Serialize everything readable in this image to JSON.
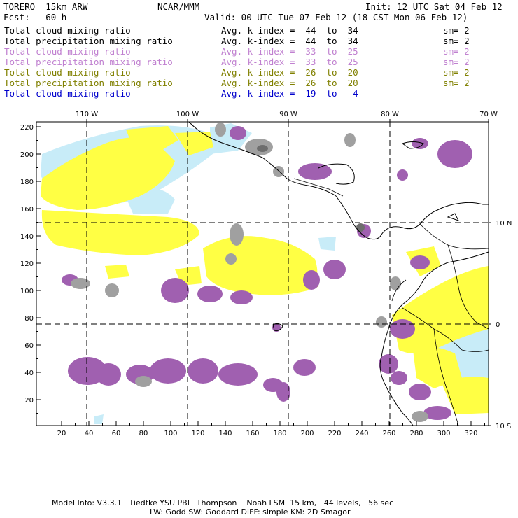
{
  "header": {
    "model_name": "TORERO  15km ARW",
    "org": "NCAR/MMM",
    "init": "Init: 12 UTC Sat 04 Feb 12",
    "fcst": "Fcst:   60 h",
    "valid": "Valid: 00 UTC Tue 07 Feb 12 (18 CST Mon 06 Feb 12)"
  },
  "legend": [
    {
      "field": "Total cloud mixing ratio",
      "kindex": "Avg. k-index =  44  to  34",
      "sm": "sm= 2",
      "color": "#000000"
    },
    {
      "field": "Total precipitation mixing ratio",
      "kindex": "Avg. k-index =  44  to  34",
      "sm": "sm= 2",
      "color": "#000000"
    },
    {
      "field": "Total cloud mixing ratio",
      "kindex": "Avg. k-index =  33  to  25",
      "sm": "sm= 2",
      "color": "#c080d0"
    },
    {
      "field": "Total precipitation mixing ratio",
      "kindex": "Avg. k-index =  33  to  25",
      "sm": "sm= 2",
      "color": "#c080d0"
    },
    {
      "field": "Total cloud mixing ratio",
      "kindex": "Avg. k-index =  26  to  20",
      "sm": "sm= 2",
      "color": "#808000"
    },
    {
      "field": "Total precipitation mixing ratio",
      "kindex": "Avg. k-index =  26  to  20",
      "sm": "sm= 2",
      "color": "#808000"
    },
    {
      "field": "Total cloud mixing ratio",
      "kindex": "Avg. k-index =  19  to   4",
      "sm": "",
      "color": "#0000cc"
    }
  ],
  "colors": {
    "gray": "#a0a0a0",
    "dark_gray": "#6e6e6e",
    "purple": "#a060b0",
    "yellow": "#ffff44",
    "light_blue": "#c8ecf8",
    "frame": "#000000"
  },
  "map": {
    "top_lon_labels": [
      "110 W",
      "100 W",
      "90 W",
      "80 W",
      "70 W"
    ],
    "right_lat_labels": [
      "10 N",
      "0",
      "10 S"
    ],
    "left_ticks": [
      "220",
      "200",
      "180",
      "160",
      "140",
      "120",
      "100",
      "80",
      "60",
      "40",
      "20"
    ],
    "bottom_ticks": [
      "20",
      "40",
      "60",
      "80",
      "100",
      "120",
      "140",
      "160",
      "180",
      "200",
      "220",
      "240",
      "260",
      "280",
      "300",
      "320"
    ]
  },
  "footer": {
    "line1": "Model Info: V3.3.1   Tiedtke YSU PBL  Thompson    Noah LSM  15 km,   44 levels,   56 sec",
    "line2": "LW: Godd SW: Goddard DIFF: simple KM: 2D Smagor"
  }
}
